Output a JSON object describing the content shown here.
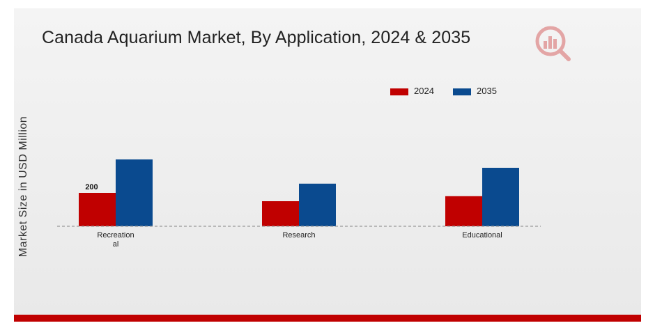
{
  "chart_data": {
    "type": "bar",
    "title": "Canada Aquarium Market, By Application, 2024 & 2035",
    "ylabel": "Market Size in USD Million",
    "xlabel": "",
    "categories": [
      "Recreational",
      "Research",
      "Educational"
    ],
    "series": [
      {
        "name": "2024",
        "color": "#c00000",
        "values": [
          200,
          150,
          180
        ]
      },
      {
        "name": "2035",
        "color": "#0a4a8f",
        "values": [
          400,
          255,
          350
        ]
      }
    ],
    "data_labels": [
      {
        "series": "2024",
        "category": "Recreational",
        "text": "200"
      }
    ],
    "ylim": [
      0,
      450
    ],
    "grid": false,
    "legend_position": "top-right"
  },
  "logo": {
    "icon": "bar-chart-magnifier-icon",
    "color": "#c00000"
  }
}
